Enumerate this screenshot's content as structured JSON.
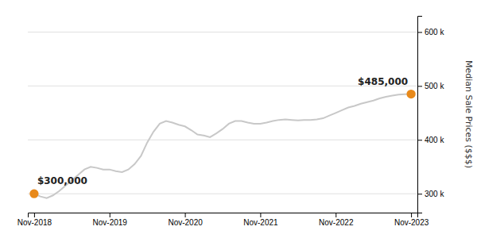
{
  "chart_data": {
    "type": "line",
    "ylabel": "Median Sale Prices ($$$)",
    "x": [
      0,
      1,
      2,
      3,
      4,
      5,
      6,
      7,
      8,
      9,
      10,
      11,
      12,
      13,
      14,
      15,
      16,
      17,
      18,
      19,
      20,
      21,
      22,
      23,
      24,
      25,
      26,
      27,
      28,
      29,
      30,
      31,
      32,
      33,
      34,
      35,
      36,
      37,
      38,
      39,
      40,
      41,
      42,
      43,
      44,
      45,
      46,
      47,
      48,
      49,
      50,
      51,
      52,
      53,
      54,
      55,
      56,
      57,
      58,
      59,
      60
    ],
    "series": [
      {
        "type": "line",
        "color": "#c8c8c8",
        "values": [
          300000,
          295000,
          292000,
          297000,
          305000,
          315000,
          325000,
          335000,
          345000,
          350000,
          348000,
          345000,
          345000,
          342000,
          340000,
          345000,
          355000,
          370000,
          395000,
          415000,
          430000,
          435000,
          432000,
          428000,
          425000,
          418000,
          410000,
          408000,
          405000,
          412000,
          420000,
          430000,
          435000,
          435000,
          432000,
          430000,
          430000,
          432000,
          435000,
          437000,
          438000,
          437000,
          436000,
          437000,
          437000,
          438000,
          440000,
          445000,
          450000,
          455000,
          460000,
          463000,
          467000,
          470000,
          473000,
          477000,
          480000,
          482000,
          484000,
          484500,
          485000
        ]
      },
      {
        "type": "scatter",
        "color": "#E8891A",
        "marker": "circle",
        "x": [
          0,
          60
        ],
        "values": [
          300000,
          485000
        ],
        "data_labels": true,
        "value_labels": [
          "$300,000",
          "$485,000"
        ]
      }
    ],
    "xlim": [
      -1,
      61
    ],
    "xticks": [
      {
        "value": 0,
        "label": "Nov-2018"
      },
      {
        "value": 12,
        "label": "Nov-2019"
      },
      {
        "value": 24,
        "label": "Nov-2020"
      },
      {
        "value": 36,
        "label": "Nov-2021"
      },
      {
        "value": 48,
        "label": "Nov-2022"
      },
      {
        "value": 60,
        "label": "Nov-2023"
      }
    ],
    "ylim": [
      265000,
      630000
    ],
    "yticks": [
      {
        "value": 300000,
        "label": "300 k"
      },
      {
        "value": 400000,
        "label": "400 k"
      },
      {
        "value": 500000,
        "label": "500 k"
      },
      {
        "value": 600000,
        "label": "600 k"
      }
    ],
    "grid": true
  }
}
